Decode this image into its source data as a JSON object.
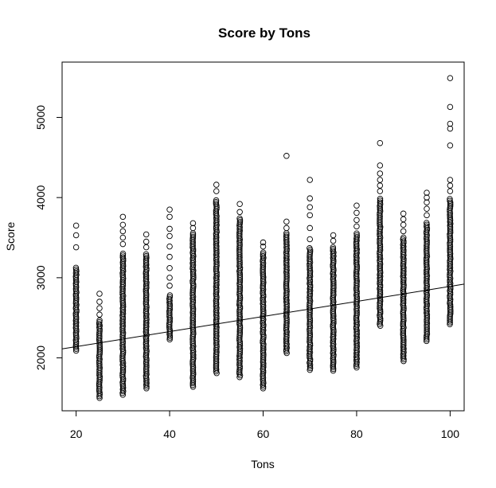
{
  "chart_data": {
    "type": "scatter",
    "title": "Score by Tons",
    "xlabel": "Tons",
    "ylabel": "Score",
    "xlim": [
      17,
      103
    ],
    "ylim": [
      1340,
      5690
    ],
    "xticks": [
      20,
      40,
      60,
      80,
      100
    ],
    "yticks": [
      2000,
      3000,
      4000,
      5000
    ],
    "grid": false,
    "legend": "none",
    "point_marker": "open-circle",
    "point_color": "#000000",
    "groups": [
      {
        "x": 20,
        "min": 2090,
        "max": 3140,
        "outliers": [
          3380,
          3530,
          3650
        ]
      },
      {
        "x": 25,
        "min": 1500,
        "max": 2480,
        "outliers": [
          2540,
          2620,
          2700,
          2800
        ]
      },
      {
        "x": 30,
        "min": 1540,
        "max": 3300,
        "outliers": [
          3420,
          3500,
          3580,
          3660,
          3760
        ]
      },
      {
        "x": 35,
        "min": 1620,
        "max": 3300,
        "outliers": [
          3380,
          3450,
          3540
        ]
      },
      {
        "x": 40,
        "min": 2230,
        "max": 2800,
        "outliers": [
          2900,
          3000,
          3120,
          3260,
          3390,
          3520,
          3610,
          3760,
          3850
        ]
      },
      {
        "x": 45,
        "min": 1640,
        "max": 3560,
        "outliers": [
          3620,
          3680
        ]
      },
      {
        "x": 50,
        "min": 1810,
        "max": 3980,
        "outliers": [
          4080,
          4160
        ]
      },
      {
        "x": 55,
        "min": 1760,
        "max": 3740,
        "outliers": [
          3820,
          3920
        ]
      },
      {
        "x": 60,
        "min": 1620,
        "max": 3330,
        "outliers": [
          3390,
          3440
        ]
      },
      {
        "x": 65,
        "min": 2060,
        "max": 3560,
        "outliers": [
          3620,
          3700,
          4520
        ]
      },
      {
        "x": 70,
        "min": 1850,
        "max": 3370,
        "outliers": [
          3480,
          3620,
          3780,
          3880,
          3990,
          4220
        ]
      },
      {
        "x": 75,
        "min": 1840,
        "max": 3400,
        "outliers": [
          3460,
          3530
        ]
      },
      {
        "x": 80,
        "min": 1880,
        "max": 3560,
        "outliers": [
          3640,
          3720,
          3810,
          3900
        ]
      },
      {
        "x": 85,
        "min": 2400,
        "max": 4000,
        "outliers": [
          4080,
          4150,
          4220,
          4300,
          4400,
          4680
        ]
      },
      {
        "x": 90,
        "min": 1960,
        "max": 3500,
        "outliers": [
          3580,
          3660,
          3730,
          3800
        ]
      },
      {
        "x": 95,
        "min": 2210,
        "max": 3700,
        "outliers": [
          3780,
          3860,
          3940,
          4000,
          4060
        ]
      },
      {
        "x": 100,
        "min": 2420,
        "max": 4000,
        "outliers": [
          4080,
          4150,
          4220,
          4650,
          4860,
          4920,
          5130,
          5490
        ]
      }
    ],
    "fit_line": {
      "x": [
        17,
        103
      ],
      "y": [
        2112,
        2920
      ]
    }
  }
}
